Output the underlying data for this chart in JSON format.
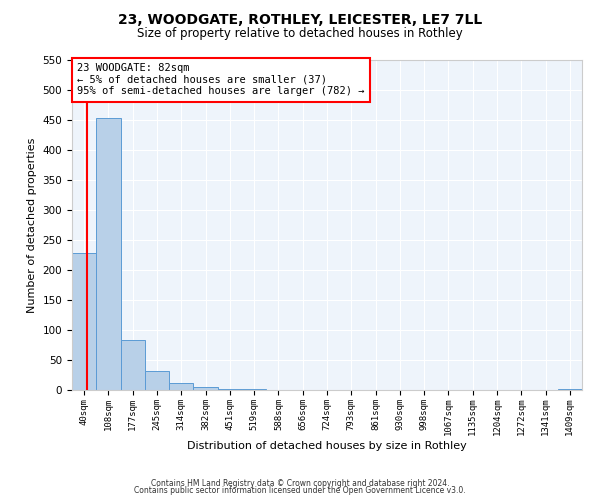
{
  "title1": "23, WOODGATE, ROTHLEY, LEICESTER, LE7 7LL",
  "title2": "Size of property relative to detached houses in Rothley",
  "xlabel": "Distribution of detached houses by size in Rothley",
  "ylabel": "Number of detached properties",
  "bin_labels": [
    "40sqm",
    "108sqm",
    "177sqm",
    "245sqm",
    "314sqm",
    "382sqm",
    "451sqm",
    "519sqm",
    "588sqm",
    "656sqm",
    "724sqm",
    "793sqm",
    "861sqm",
    "930sqm",
    "998sqm",
    "1067sqm",
    "1135sqm",
    "1204sqm",
    "1272sqm",
    "1341sqm",
    "1409sqm"
  ],
  "bar_values": [
    228,
    453,
    83,
    32,
    12,
    5,
    2,
    1,
    0,
    0,
    0,
    0,
    0,
    0,
    0,
    0,
    0,
    0,
    0,
    0,
    2
  ],
  "bar_color": "#b8d0e8",
  "bar_edge_color": "#5b9bd5",
  "ylim": [
    0,
    550
  ],
  "yticks": [
    0,
    50,
    100,
    150,
    200,
    250,
    300,
    350,
    400,
    450,
    500,
    550
  ],
  "annotation_line1": "23 WOODGATE: 82sqm",
  "annotation_line2": "← 5% of detached houses are smaller (37)",
  "annotation_line3": "95% of semi-detached houses are larger (782) →",
  "red_line_color": "#ff0000",
  "footer_line1": "Contains HM Land Registry data © Crown copyright and database right 2024.",
  "footer_line2": "Contains public sector information licensed under the Open Government Licence v3.0.",
  "bg_color": "#eef4fb",
  "title1_fontsize": 10,
  "title2_fontsize": 8.5,
  "xlabel_fontsize": 8,
  "ylabel_fontsize": 8,
  "ytick_fontsize": 7.5,
  "xtick_fontsize": 6.5,
  "annot_fontsize": 7.5,
  "footer_fontsize": 5.5
}
